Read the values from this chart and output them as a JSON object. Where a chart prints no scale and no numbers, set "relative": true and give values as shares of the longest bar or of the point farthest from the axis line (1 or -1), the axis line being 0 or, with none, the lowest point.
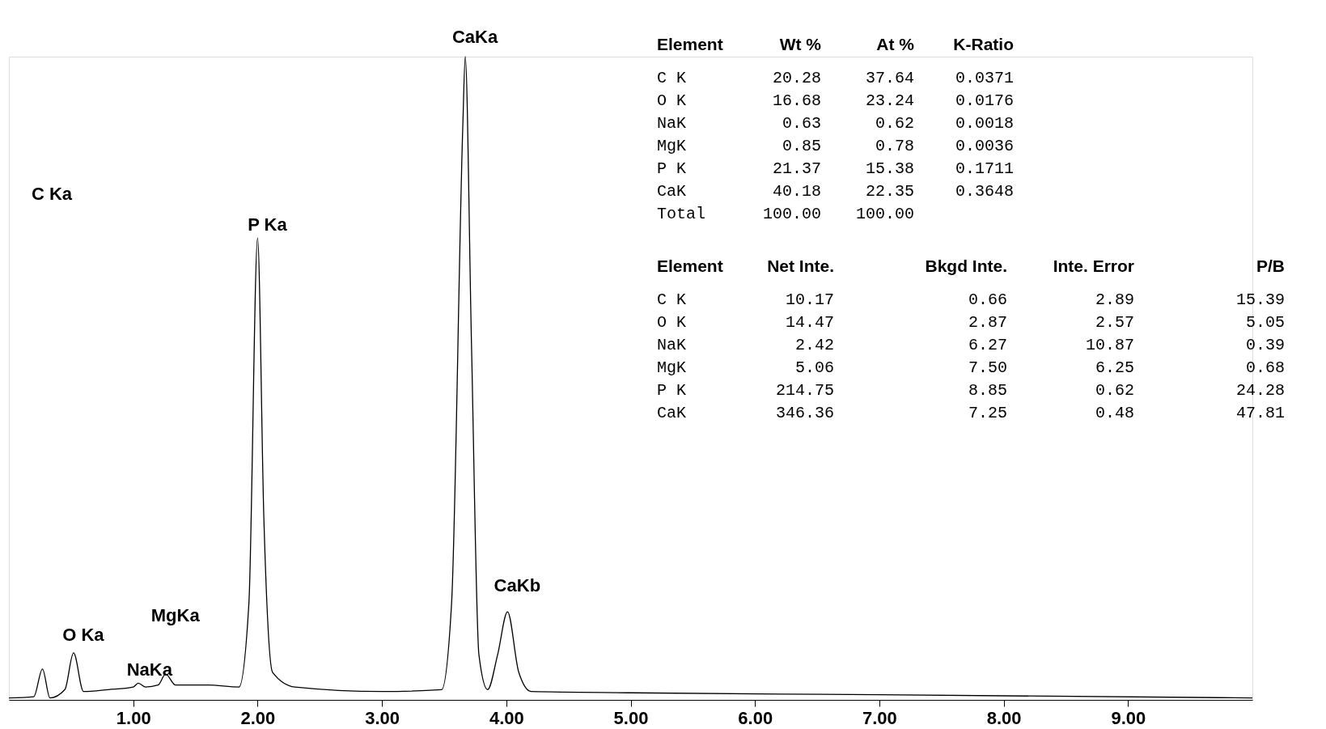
{
  "chart_data": {
    "type": "line",
    "relative": true,
    "color": "#000000",
    "marker": "none",
    "line_style": "solid",
    "grid": false,
    "x": [
      0.0,
      0.2,
      0.27,
      0.33,
      0.45,
      0.52,
      0.6,
      0.8,
      1.0,
      1.04,
      1.1,
      1.2,
      1.26,
      1.34,
      1.6,
      1.85,
      1.93,
      2.0,
      2.05,
      2.12,
      2.3,
      3.0,
      3.48,
      3.56,
      3.65,
      3.67,
      3.72,
      3.78,
      3.85,
      3.93,
      4.01,
      4.1,
      4.2,
      5.0,
      7.0,
      10.0
    ],
    "values": [
      0.003,
      0.005,
      0.048,
      0.003,
      0.016,
      0.073,
      0.013,
      0.016,
      0.02,
      0.026,
      0.02,
      0.023,
      0.04,
      0.023,
      0.023,
      0.02,
      0.15,
      0.718,
      0.285,
      0.043,
      0.02,
      0.013,
      0.016,
      0.15,
      0.89,
      1.0,
      0.554,
      0.07,
      0.016,
      0.07,
      0.137,
      0.043,
      0.013,
      0.011,
      0.008,
      0.003
    ],
    "xlim": [
      0,
      10
    ],
    "xticks": [
      {
        "value": 1,
        "label": "1.00"
      },
      {
        "value": 2,
        "label": "2.00"
      },
      {
        "value": 3,
        "label": "3.00"
      },
      {
        "value": 4,
        "label": "4.00"
      },
      {
        "value": 5,
        "label": "5.00"
      },
      {
        "value": 6,
        "label": "6.00"
      },
      {
        "value": 7,
        "label": "7.00"
      },
      {
        "value": 8,
        "label": "8.00"
      },
      {
        "value": 9,
        "label": "9.00"
      }
    ],
    "annotations": [
      "C Ka",
      {
        "text": "O Ka",
        "x": 0.52,
        "y": 0.073
      },
      {
        "text": "NaKa",
        "x": 1.04,
        "y": 0.026
      },
      {
        "text": "MgKa",
        "x": 1.26,
        "y": 0.04
      },
      {
        "text": "P Ka",
        "x": 2.0,
        "y": 0.718
      },
      {
        "text": "CaKa",
        "x": 3.67,
        "y": 1.0
      },
      {
        "text": "CaKb",
        "x": 4.01,
        "y": 0.137
      },
      "Element  Wt %  At %  K-Ratio",
      "C K  20.28  37.64  0.0371",
      "O K  16.68  23.24  0.0176",
      "NaK  0.63  0.62  0.0018",
      "MgK  0.85  0.78  0.0036",
      "P K  21.37  15.38  0.1711",
      "CaK  40.18  22.35  0.3648",
      "Total  100.00  100.00",
      "Element  Net Inte.  Bkgd Inte.  Inte. Error  P/B",
      "C K  10.17  0.66  2.89  15.39",
      "O K  14.47  2.87  2.57  5.05",
      "NaK  2.42  6.27  10.87  0.39",
      "MgK  5.06  7.50  6.25  0.68",
      "P K  214.75  8.85  0.62  24.28",
      "CaK  346.36  7.25  0.48  47.81"
    ]
  }
}
